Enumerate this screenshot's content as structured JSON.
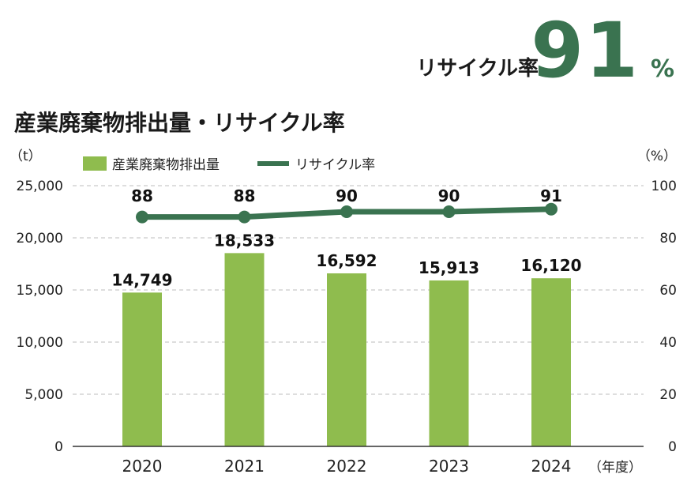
{
  "headline": {
    "label": "リサイクル率",
    "value": "91",
    "unit": "%"
  },
  "chart_data": {
    "type": "bar",
    "title": "産業廃棄物排出量・リサイクル率",
    "categories": [
      "2020",
      "2021",
      "2022",
      "2023",
      "2024"
    ],
    "x_unit": "（年度）",
    "left_axis": {
      "unit": "（t）",
      "ylim": [
        0,
        25000
      ],
      "ticks": [
        "0",
        "5,000",
        "10,000",
        "15,000",
        "20,000",
        "25,000"
      ]
    },
    "right_axis": {
      "unit": "（%）",
      "ylim": [
        0,
        100
      ],
      "ticks": [
        "0",
        "20",
        "40",
        "60",
        "80",
        "100"
      ]
    },
    "series": [
      {
        "name": "産業廃棄物排出量",
        "type": "bar",
        "axis": "left",
        "values": [
          14749,
          18533,
          16592,
          15913,
          16120
        ],
        "labels": [
          "14,749",
          "18,533",
          "16,592",
          "15,913",
          "16,120"
        ]
      },
      {
        "name": "リサイクル率",
        "type": "line",
        "axis": "right",
        "values": [
          88,
          88,
          90,
          90,
          91
        ],
        "labels": [
          "88",
          "88",
          "90",
          "90",
          "91"
        ]
      }
    ],
    "grid": true,
    "legend_position": "top",
    "colors": {
      "bar": "#8fbc4e",
      "line": "#3a7350",
      "grid": "#bdbdbd"
    }
  }
}
